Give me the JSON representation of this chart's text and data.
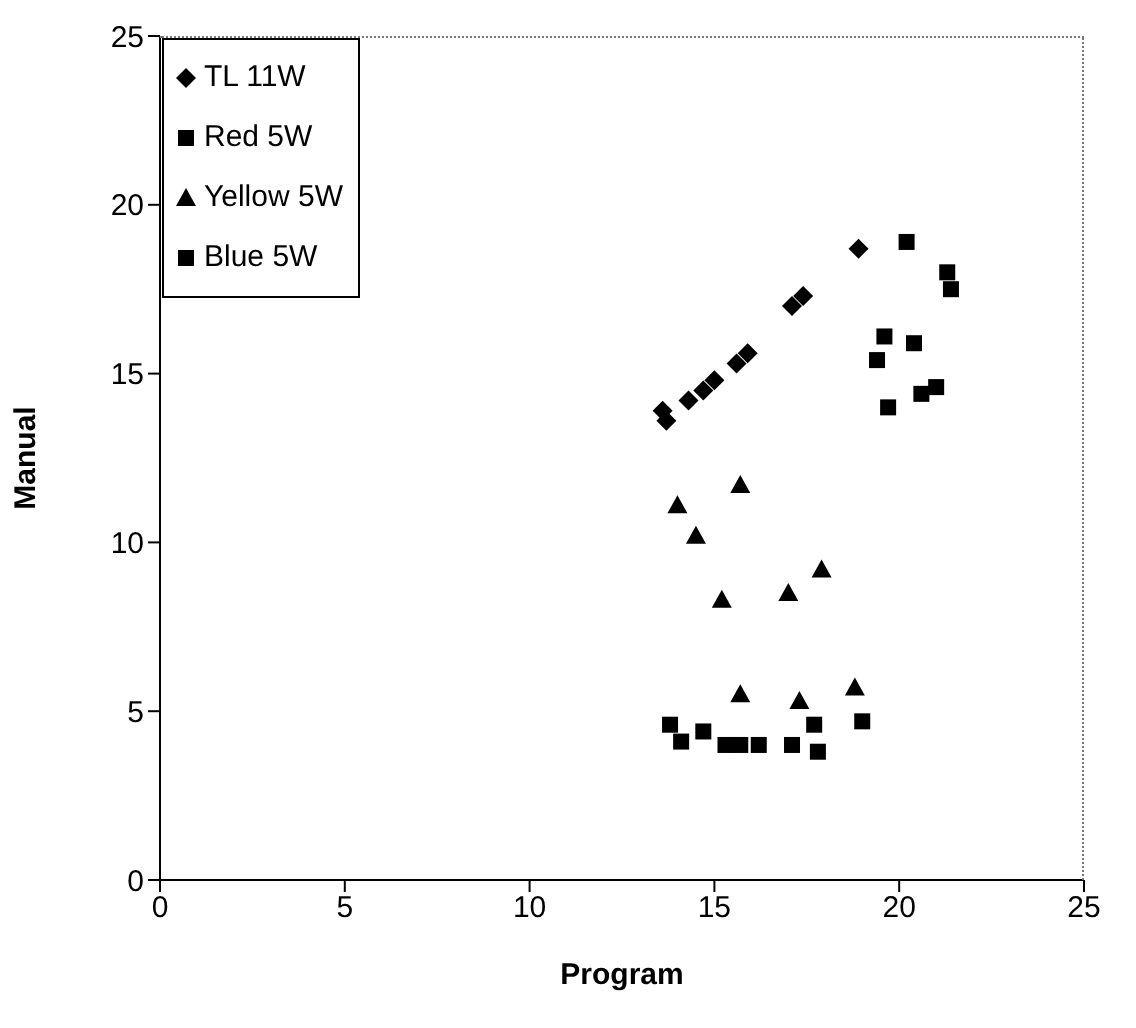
{
  "chart_data": {
    "type": "scatter",
    "xlabel": "Program",
    "ylabel": "Manual",
    "xlim": [
      0,
      25
    ],
    "xticks": [
      0,
      5,
      10,
      15,
      20,
      25
    ],
    "ylim": [
      0,
      25
    ],
    "yticks": [
      0,
      5,
      10,
      15,
      20,
      25
    ],
    "grid": false,
    "legend": "top left",
    "series": [
      {
        "name": "TL 11W",
        "color": "#000000",
        "marker": "diamond",
        "x": [
          13.6,
          13.7,
          14.3,
          14.7,
          15.0,
          15.6,
          15.9,
          17.1,
          17.4,
          18.9
        ],
        "values": [
          13.9,
          13.6,
          14.2,
          14.5,
          14.8,
          15.3,
          15.6,
          17.0,
          17.3,
          18.7
        ]
      },
      {
        "name": "Red 5W",
        "color": "#000000",
        "marker": "square",
        "x": [
          13.8,
          14.1,
          14.7,
          15.3,
          15.7,
          16.2,
          17.1,
          17.7,
          17.8,
          19.0
        ],
        "values": [
          4.6,
          4.1,
          4.4,
          4.0,
          4.0,
          4.0,
          4.0,
          4.6,
          3.8,
          4.7
        ]
      },
      {
        "name": "Yellow 5W",
        "color": "#000000",
        "marker": "triangle",
        "x": [
          15.7,
          14.0,
          14.5,
          17.9,
          17.0,
          15.2,
          15.7,
          17.3,
          18.8
        ],
        "values": [
          11.7,
          11.1,
          10.2,
          9.2,
          8.5,
          8.3,
          5.5,
          5.3,
          5.7
        ]
      },
      {
        "name": "Blue 5W",
        "color": "#000000",
        "marker": "square",
        "x": [
          20.2,
          21.3,
          21.4,
          19.6,
          20.4,
          19.4,
          21.0,
          20.6,
          19.7
        ],
        "values": [
          18.9,
          18.0,
          17.5,
          16.1,
          15.9,
          15.4,
          14.6,
          14.4,
          14.0
        ]
      }
    ]
  }
}
